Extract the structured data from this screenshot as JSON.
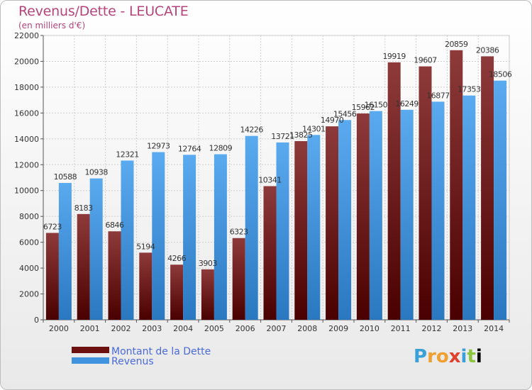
{
  "header": {
    "title": "Revenus/Dette - LEUCATE",
    "subtitle": "(en milliers d'€)"
  },
  "logo": {
    "text": "Proxiti"
  },
  "chart_data": {
    "type": "bar",
    "categories": [
      "2000",
      "2001",
      "2002",
      "2003",
      "2004",
      "2005",
      "2006",
      "2007",
      "2008",
      "2009",
      "2010",
      "2011",
      "2012",
      "2013",
      "2014"
    ],
    "series": [
      {
        "name": "Montant de la Dette",
        "color": "#7a1a1a",
        "values": [
          6723,
          8183,
          6846,
          5194,
          4266,
          3903,
          6323,
          10341,
          13825,
          14970,
          15962,
          19919,
          19607,
          20859,
          20386
        ],
        "labels": [
          "6723",
          "8183",
          "6846",
          "5194",
          "4266",
          "3903",
          "6323",
          "10341",
          "13825",
          "14970",
          "15962",
          "19919",
          "19607",
          "20859",
          "20386"
        ]
      },
      {
        "name": "Revenus",
        "color": "#3f93df",
        "values": [
          10588,
          10938,
          12321,
          12973,
          12764,
          12809,
          14226,
          13721,
          14301,
          15456,
          16150,
          16249,
          16877,
          17353,
          18506
        ],
        "labels": [
          "10588",
          "10938",
          "12321",
          "12973",
          "12764",
          "12809",
          "14226",
          "13721",
          "14301",
          "15456",
          "16150",
          "16249",
          "16877",
          "17353",
          "18506"
        ]
      }
    ],
    "y_ticks": [
      "0",
      "2000",
      "4000",
      "6000",
      "8000",
      "10000",
      "12000",
      "14000",
      "16000",
      "18000",
      "20000",
      "22000"
    ],
    "ylim": [
      0,
      22000
    ],
    "grid": true,
    "legend_position": "bottom-left"
  }
}
